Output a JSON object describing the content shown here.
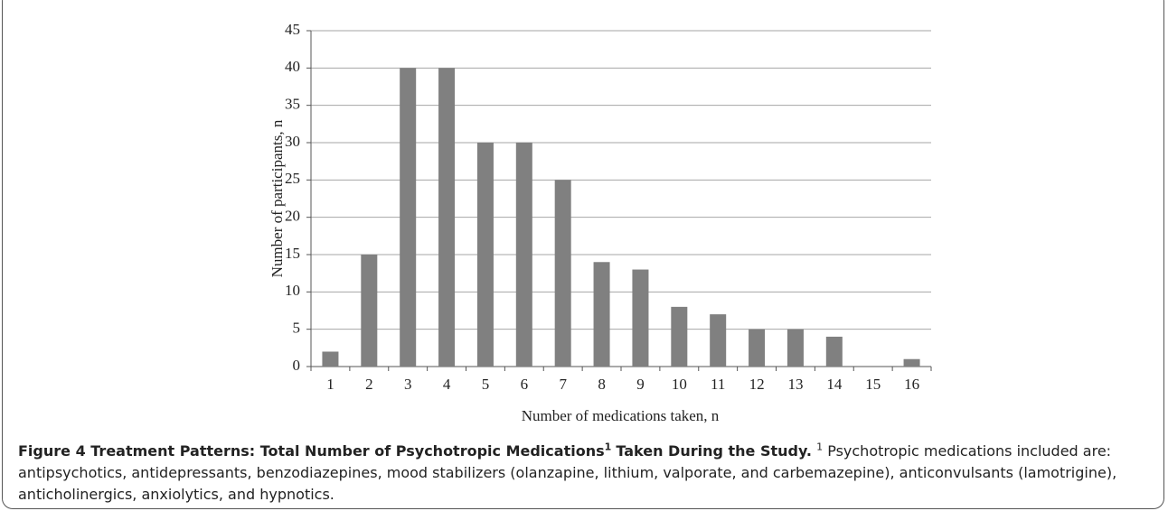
{
  "chart_data": {
    "type": "bar",
    "x_label": "Number of medications taken, n",
    "y_label": "Number of participants, n",
    "categories": [
      "1",
      "2",
      "3",
      "4",
      "5",
      "6",
      "7",
      "8",
      "9",
      "10",
      "11",
      "12",
      "13",
      "14",
      "15",
      "16"
    ],
    "values": [
      2,
      15,
      40,
      40,
      30,
      30,
      25,
      14,
      13,
      8,
      7,
      5,
      5,
      4,
      0,
      1
    ],
    "color": "#808080",
    "ylim": [
      0,
      45
    ],
    "yticks": [
      0,
      5,
      10,
      15,
      20,
      25,
      30,
      35,
      40,
      45
    ],
    "grid": true
  },
  "caption": {
    "title": "Figure 4 Treatment Patterns: Total Number of Psychotropic Medications",
    "title_sup": "1",
    "title_end": "Taken During the Study.",
    "note_sup": "1",
    "note": "Psychotropic medications included are: antipsychotics, antidepressants, benzodiazepines, mood stabilizers (olanzapine, lithium, valporate, and carbemazepine), anticonvulsants (lamotrigine), anticholinergics, anxiolytics, and hypnotics."
  }
}
